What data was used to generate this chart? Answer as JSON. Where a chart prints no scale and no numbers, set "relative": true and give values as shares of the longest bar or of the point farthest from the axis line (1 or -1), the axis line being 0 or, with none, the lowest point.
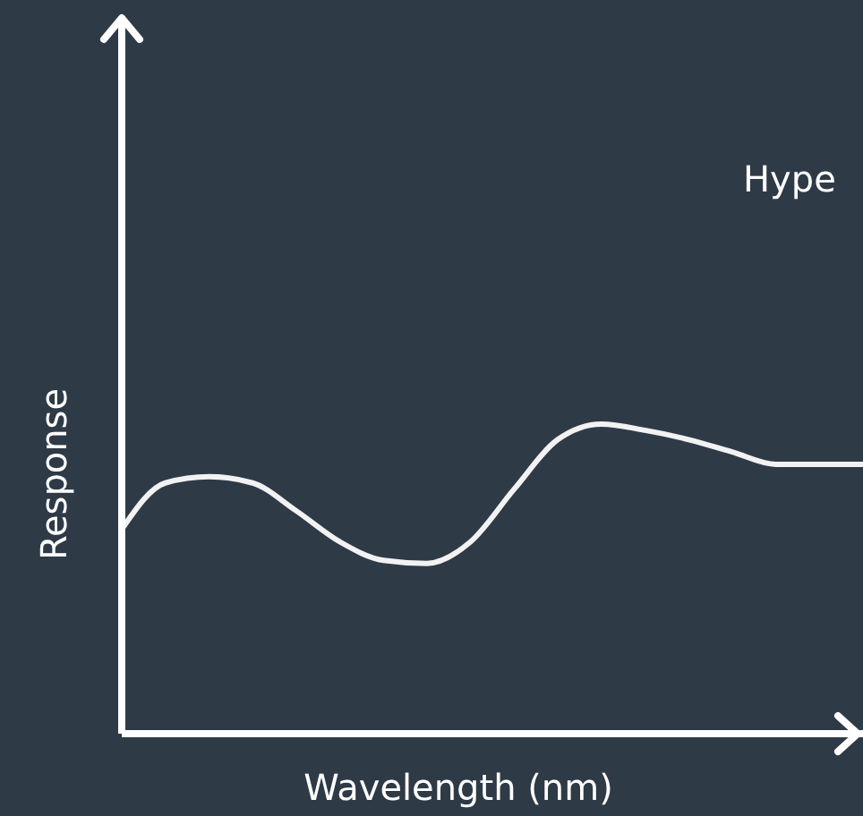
{
  "chart_data": {
    "type": "line",
    "relative": true,
    "xlabel": "Wavelength (nm)",
    "ylabel": "Response",
    "annotations": [
      "Hype"
    ],
    "categories": [
      null,
      null,
      null,
      null,
      null,
      null,
      null,
      null,
      null,
      null,
      null,
      null,
      null,
      null,
      null,
      null,
      null,
      null
    ],
    "series": [
      {
        "color": "#f2f2f2",
        "values": [
          0.66,
          0.81,
          0.83,
          0.81,
          0.72,
          0.62,
          0.56,
          0.55,
          0.62,
          0.79,
          0.95,
          1,
          0.98,
          0.95,
          0.91,
          0.87,
          0.87,
          0.87
        ]
      }
    ],
    "grid": false,
    "legend": false,
    "marker": "none",
    "line_style": "solid"
  }
}
